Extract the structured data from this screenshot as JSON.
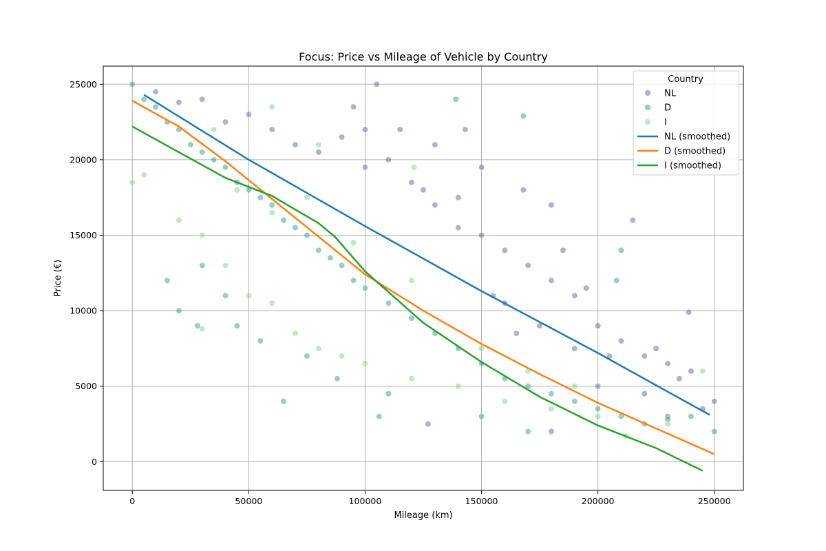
{
  "chart_data": {
    "type": "scatter",
    "title": "Focus: Price vs Mileage of Vehicle by Country",
    "xlabel": "Mileage (km)",
    "ylabel": "Price (€)",
    "xlim": [
      -12500,
      262500
    ],
    "ylim": [
      -1900,
      26200
    ],
    "xticks": [
      0,
      50000,
      100000,
      150000,
      200000,
      250000
    ],
    "yticks": [
      0,
      5000,
      10000,
      15000,
      20000,
      25000
    ],
    "grid": true,
    "legend": {
      "title": "Country",
      "placement": "top-right"
    },
    "series": [
      {
        "name": "NL",
        "kind": "scatter",
        "color": "#5a6a9c",
        "points": [
          [
            10000,
            24500
          ],
          [
            20000,
            23800
          ],
          [
            30000,
            24000
          ],
          [
            40000,
            22500
          ],
          [
            50000,
            23000
          ],
          [
            60000,
            22000
          ],
          [
            70000,
            21000
          ],
          [
            80000,
            20500
          ],
          [
            90000,
            21500
          ],
          [
            100000,
            19500
          ],
          [
            110000,
            20000
          ],
          [
            120000,
            18500
          ],
          [
            130000,
            17000
          ],
          [
            140000,
            17500
          ],
          [
            150000,
            15000
          ],
          [
            160000,
            14000
          ],
          [
            170000,
            13000
          ],
          [
            180000,
            12000
          ],
          [
            190000,
            11000
          ],
          [
            200000,
            9000
          ],
          [
            210000,
            8000
          ],
          [
            220000,
            7000
          ],
          [
            230000,
            6500
          ],
          [
            240000,
            6000
          ],
          [
            250000,
            4000
          ],
          [
            115000,
            22000
          ],
          [
            130000,
            21000
          ],
          [
            143000,
            22000
          ],
          [
            150000,
            19500
          ],
          [
            168000,
            18000
          ],
          [
            180000,
            17000
          ],
          [
            215000,
            16000
          ],
          [
            239000,
            9900
          ],
          [
            160000,
            10500
          ],
          [
            175000,
            9000
          ],
          [
            190000,
            7500
          ],
          [
            205000,
            7000
          ],
          [
            185000,
            14000
          ],
          [
            195000,
            11500
          ],
          [
            225000,
            7500
          ],
          [
            105000,
            25000
          ],
          [
            95000,
            23500
          ],
          [
            100000,
            22000
          ],
          [
            125000,
            18000
          ],
          [
            140000,
            15500
          ],
          [
            155000,
            11000
          ],
          [
            165000,
            8500
          ],
          [
            200000,
            5000
          ],
          [
            230000,
            3000
          ],
          [
            245000,
            3500
          ],
          [
            127000,
            2500
          ],
          [
            180000,
            2000
          ],
          [
            220000,
            4500
          ],
          [
            235000,
            5500
          ]
        ]
      },
      {
        "name": "D",
        "kind": "scatter",
        "color": "#2f9c90",
        "points": [
          [
            0,
            25000
          ],
          [
            5000,
            24000
          ],
          [
            10000,
            23500
          ],
          [
            15000,
            22500
          ],
          [
            20000,
            22000
          ],
          [
            25000,
            21000
          ],
          [
            30000,
            20500
          ],
          [
            35000,
            20000
          ],
          [
            40000,
            19500
          ],
          [
            45000,
            18500
          ],
          [
            50000,
            18000
          ],
          [
            55000,
            17500
          ],
          [
            60000,
            17000
          ],
          [
            65000,
            16000
          ],
          [
            70000,
            15500
          ],
          [
            75000,
            15000
          ],
          [
            80000,
            14000
          ],
          [
            85000,
            13500
          ],
          [
            90000,
            13000
          ],
          [
            95000,
            12000
          ],
          [
            100000,
            11500
          ],
          [
            110000,
            10500
          ],
          [
            120000,
            9500
          ],
          [
            130000,
            8500
          ],
          [
            140000,
            7500
          ],
          [
            150000,
            6500
          ],
          [
            160000,
            5500
          ],
          [
            170000,
            5000
          ],
          [
            180000,
            4500
          ],
          [
            190000,
            4000
          ],
          [
            200000,
            3500
          ],
          [
            210000,
            3000
          ],
          [
            220000,
            2500
          ],
          [
            230000,
            2800
          ],
          [
            240000,
            3000
          ],
          [
            250000,
            2000
          ],
          [
            139000,
            24000
          ],
          [
            168000,
            22900
          ],
          [
            65000,
            4000
          ],
          [
            106000,
            3000
          ],
          [
            20000,
            10000
          ],
          [
            28000,
            9000
          ],
          [
            45000,
            9000
          ],
          [
            55000,
            8000
          ],
          [
            75000,
            7000
          ],
          [
            88000,
            5500
          ],
          [
            110000,
            4500
          ],
          [
            150000,
            3000
          ],
          [
            170000,
            2000
          ],
          [
            210000,
            14000
          ],
          [
            208000,
            12000
          ],
          [
            15000,
            12000
          ],
          [
            30000,
            13000
          ],
          [
            40000,
            11000
          ]
        ]
      },
      {
        "name": "I",
        "kind": "scatter",
        "color": "#7fd28a",
        "points": [
          [
            5000,
            19000
          ],
          [
            20000,
            16000
          ],
          [
            30000,
            15000
          ],
          [
            40000,
            13000
          ],
          [
            50000,
            11000
          ],
          [
            60000,
            10500
          ],
          [
            70000,
            8500
          ],
          [
            80000,
            7500
          ],
          [
            90000,
            7000
          ],
          [
            100000,
            6500
          ],
          [
            120000,
            5500
          ],
          [
            140000,
            5000
          ],
          [
            160000,
            4000
          ],
          [
            180000,
            3500
          ],
          [
            200000,
            3000
          ],
          [
            230000,
            2500
          ],
          [
            245000,
            6000
          ],
          [
            121000,
            19500
          ],
          [
            35000,
            22000
          ],
          [
            60000,
            23500
          ],
          [
            80000,
            21000
          ],
          [
            45000,
            18000
          ],
          [
            75000,
            17500
          ],
          [
            95000,
            14500
          ],
          [
            120000,
            12000
          ],
          [
            150000,
            7500
          ],
          [
            170000,
            6000
          ],
          [
            190000,
            5000
          ],
          [
            212000,
            1700
          ],
          [
            30000,
            8800
          ],
          [
            0,
            18500
          ],
          [
            60000,
            16500
          ]
        ]
      },
      {
        "name": "NL (smoothed)",
        "kind": "line",
        "color": "#1f77b4",
        "points": [
          [
            5000,
            24300
          ],
          [
            50000,
            20000
          ],
          [
            100000,
            15600
          ],
          [
            150000,
            11300
          ],
          [
            200000,
            7200
          ],
          [
            248000,
            3100
          ]
        ]
      },
      {
        "name": "D (smoothed)",
        "kind": "line",
        "color": "#ff7f0e",
        "points": [
          [
            0,
            23900
          ],
          [
            20000,
            22200
          ],
          [
            40000,
            19900
          ],
          [
            60000,
            17400
          ],
          [
            80000,
            14900
          ],
          [
            100000,
            12400
          ],
          [
            125000,
            10000
          ],
          [
            150000,
            7800
          ],
          [
            175000,
            5800
          ],
          [
            200000,
            3900
          ],
          [
            225000,
            2200
          ],
          [
            250000,
            500
          ]
        ]
      },
      {
        "name": "I (smoothed)",
        "kind": "line",
        "color": "#2ca02c",
        "points": [
          [
            0,
            22200
          ],
          [
            20000,
            20500
          ],
          [
            40000,
            18800
          ],
          [
            60000,
            17600
          ],
          [
            80000,
            15800
          ],
          [
            87000,
            14900
          ],
          [
            100000,
            12600
          ],
          [
            125000,
            9200
          ],
          [
            150000,
            6600
          ],
          [
            175000,
            4300
          ],
          [
            200000,
            2400
          ],
          [
            225000,
            900
          ],
          [
            245000,
            -600
          ]
        ]
      }
    ]
  }
}
